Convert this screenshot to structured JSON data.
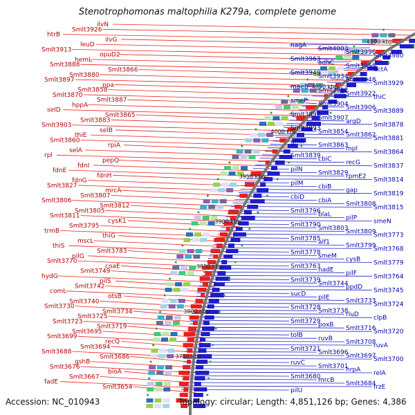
{
  "title": "Stenotrophomonas maltophilia K279a, complete genome",
  "footer": {
    "accession": "Accession: NC_010943",
    "summary": "Topology: circular; Length: 4,851,126 bp; Genes: 4,386"
  },
  "colors": {
    "forward": "#e8211b",
    "reverse": "#1e1ec8",
    "backbone": "#777777"
  },
  "ticks": [
    "4100 kbp",
    "4050 kbp",
    "4000 kbp",
    "3950 kbp",
    "3900 kbp",
    "3850 kbp",
    "3800 kbp",
    "3750 kbp"
  ],
  "forward_labels": [
    "ilvN",
    "Smlt3926",
    "htrB",
    "ilvG",
    "leuD",
    "Smlt3913",
    "opuD2",
    "hemL",
    "Smlt3888",
    "Smlt3866",
    "Smlt3880",
    "Smlt3897",
    "ppa",
    "Smlt3858",
    "Smlt3870",
    "Smlt3887",
    "hppA",
    "selD",
    "Smlt3865",
    "Smlt3883",
    "Smlt3903",
    "selB",
    "thiE",
    "Smlt3860",
    "rpiA",
    "selA",
    "rpl",
    "pepQ",
    "fdnI",
    "fdnE",
    "fdnH",
    "fdnG",
    "Smlt3827",
    "mrcA",
    "Smlt3807",
    "Smlt3806",
    "Smlt3812",
    "Smlt3805",
    "Smlt3811",
    "cysK1",
    "Smlt3795",
    "trmB",
    "thiG",
    "mscL",
    "thiS",
    "Smlt3783",
    "pilG",
    "Smlt3770",
    "coaE",
    "Smlt3749",
    "hydG",
    "pilS",
    "Smlt3742",
    "comL",
    "otsB",
    "Smlt3740",
    "Smlt3730",
    "Smlt3734",
    "Smlt3725",
    "Smlt3723",
    "Smlt3719",
    "Smlt3695",
    "Smlt3699",
    "recQ",
    "Smlt3694",
    "Smlt3688",
    "Smlt3686",
    "gshB",
    "Smlt3676",
    "bioA",
    "Smlt3667",
    "fadE",
    "Smlt3654"
  ],
  "reverse_labels": [
    "nagA",
    "Smlt4003",
    "Smlt3996",
    "Smlt3980",
    "Smlt3963",
    "adhC",
    "Smlt3955",
    "dctA",
    "Smlt3949",
    "Smlt3934",
    "Smlt3948",
    "Smlt3929",
    "maeB",
    "Smlt3912",
    "Smlt3922",
    "thiC",
    "smeP",
    "Smlt3904",
    "Smlt3906",
    "Smlt3889",
    "Smlt3892",
    "Smlt3907",
    "argD",
    "Smlt3878",
    "Smlt3893",
    "Smlt3854",
    "Smlt3862",
    "Smlt3881",
    "gmk",
    "Smlt3863",
    "mpl",
    "Smlt3864",
    "Smlt3839",
    "cbiC",
    "recG",
    "Smlt3837",
    "pilN",
    "Smlt3829",
    "rpmE2",
    "Smlt3814",
    "pilM",
    "cbiB",
    "gap",
    "Smlt3819",
    "cbiD",
    "cbiA",
    "Smlt3808",
    "Smlt3815",
    "Smlt3796",
    "blaL",
    "pilP",
    "smeN",
    "Smlt3790",
    "Smlt3803",
    "Smlt3809",
    "Smlt3773",
    "Smlt3785",
    "alf1",
    "Smlt3799",
    "Smlt3768",
    "Smlt3778",
    "smeM",
    "cysB",
    "Smlt3779",
    "Smlt3763",
    "nadE",
    "pilF",
    "Smlt3764",
    "Smlt3739",
    "Smlt3744",
    "ppdD",
    "Smlt3745",
    "sucD",
    "pilE",
    "Smlt3733",
    "Smlt3724",
    "Smlt3728",
    "Smlt3738",
    "rluD",
    "clpB",
    "Smlt3729",
    "poxB",
    "Smlt3716",
    "Smlt3720",
    "tolB",
    "ruvB",
    "Smlt3708",
    "ruvA",
    "Smlt3721",
    "Smlt3696",
    "Smlt3697",
    "Smlt3700",
    "ruvC",
    "Smlt3701",
    "hrpA",
    "relA",
    "Smlt3680",
    "mrcB",
    "Smlt3684",
    "frzE",
    "pilU"
  ]
}
